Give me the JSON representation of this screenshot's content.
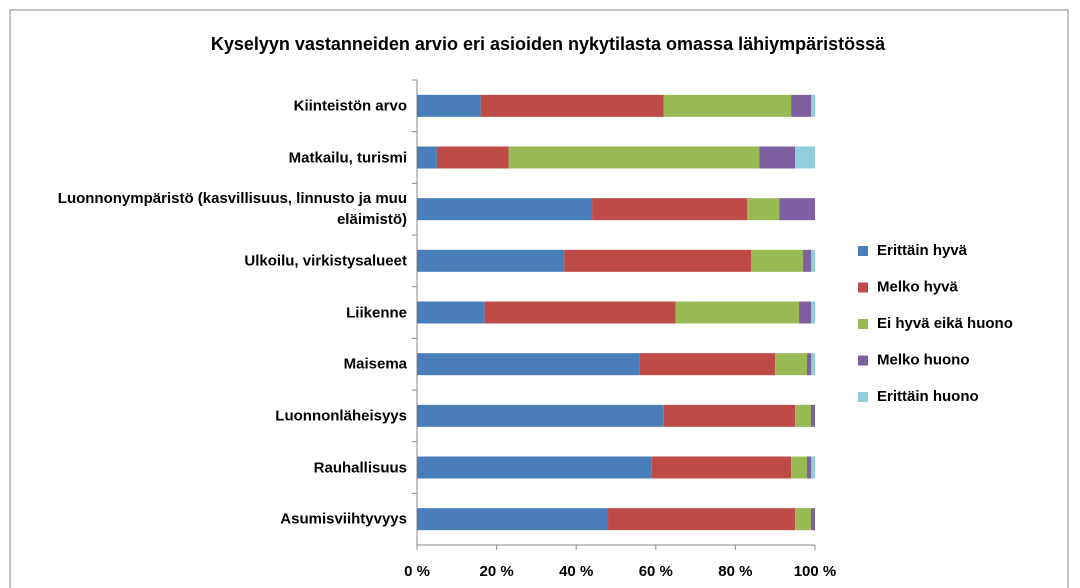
{
  "chart_data": {
    "type": "stacked_bar_horizontal",
    "title": "Kyselyyn vastanneiden arvio eri asioiden nykytilasta omassa lähiympäristössä",
    "categories": [
      "Kiinteistön arvo",
      "Matkailu, turismi",
      "Luonnonympäristö (kasvillisuus, linnusto ja muu eläimistö)",
      "Ulkoilu, virkistysalueet",
      "Liikenne",
      "Maisema",
      "Luonnonläheisyys",
      "Rauhallisuus",
      "Asumisviihtyvyys"
    ],
    "series": [
      {
        "name": "Erittäin hyvä",
        "color": "#4a7ebb",
        "values": [
          16,
          5,
          44,
          37,
          17,
          56,
          62,
          59,
          48
        ]
      },
      {
        "name": "Melko hyvä",
        "color": "#be4b48",
        "values": [
          46,
          18,
          39,
          47,
          48,
          34,
          33,
          35,
          47
        ]
      },
      {
        "name": "Ei hyvä eikä huono",
        "color": "#98b954",
        "values": [
          32,
          63,
          8,
          13,
          31,
          8,
          4,
          4,
          4
        ]
      },
      {
        "name": "Melko huono",
        "color": "#7d60a0",
        "values": [
          5,
          9,
          9,
          2,
          3,
          1,
          1,
          1,
          1
        ]
      },
      {
        "name": "Erittäin huono",
        "color": "#92cddc",
        "values": [
          1,
          5,
          0,
          1,
          1,
          1,
          0,
          1,
          0
        ]
      }
    ],
    "xlim": [
      0,
      100
    ],
    "xticks": [
      {
        "value": 0,
        "label": "0 %"
      },
      {
        "value": 20,
        "label": "20 %"
      },
      {
        "value": 40,
        "label": "40 %"
      },
      {
        "value": 60,
        "label": "60 %"
      },
      {
        "value": 80,
        "label": "80 %"
      },
      {
        "value": 100,
        "label": "100 %"
      }
    ],
    "legend": "right"
  }
}
